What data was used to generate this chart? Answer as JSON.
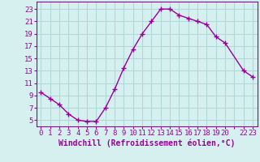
{
  "x": [
    0,
    1,
    2,
    3,
    4,
    5,
    6,
    7,
    8,
    9,
    10,
    11,
    12,
    13,
    14,
    15,
    16,
    17,
    18,
    19,
    20,
    22,
    23
  ],
  "y": [
    9.5,
    8.5,
    7.5,
    6.0,
    5.0,
    4.8,
    4.8,
    7.0,
    10.0,
    13.5,
    16.5,
    19.0,
    21.0,
    23.0,
    23.0,
    22.0,
    21.5,
    21.0,
    20.5,
    18.5,
    17.5,
    13.0,
    12.0
  ],
  "line_color": "#990099",
  "marker": "+",
  "marker_size": 4,
  "marker_linewidth": 1.0,
  "background_color": "#d6f0f0",
  "grid_color": "#b0d8d8",
  "xlabel": "Windchill (Refroidissement éolien,°C)",
  "ylabel_ticks": [
    5,
    7,
    9,
    11,
    13,
    15,
    17,
    19,
    21,
    23
  ],
  "xtick_positions": [
    0,
    1,
    2,
    3,
    4,
    5,
    6,
    7,
    8,
    9,
    10,
    11,
    12,
    13,
    14,
    15,
    16,
    17,
    18,
    19,
    20,
    21,
    22,
    23
  ],
  "xtick_labels": [
    "0",
    "1",
    "2",
    "3",
    "4",
    "5",
    "6",
    "7",
    "8",
    "9",
    "10",
    "11",
    "12",
    "13",
    "14",
    "15",
    "16",
    "17",
    "18",
    "19",
    "20",
    "",
    "22",
    "23"
  ],
  "xlim": [
    -0.5,
    23.5
  ],
  "ylim": [
    4.0,
    24.2
  ],
  "axis_color": "#990099",
  "label_fontsize": 7,
  "tick_fontsize": 6.5,
  "linewidth": 1.0
}
